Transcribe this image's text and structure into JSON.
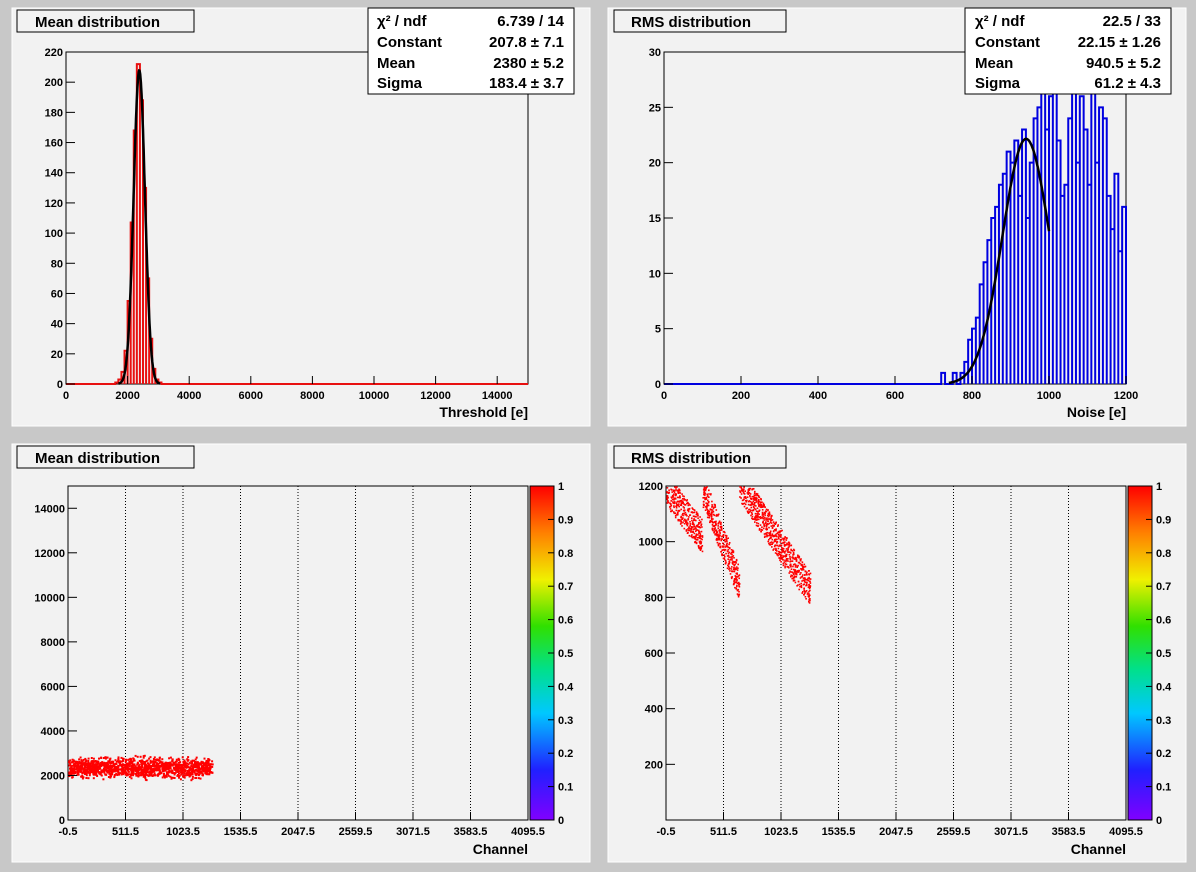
{
  "colors": {
    "background": "#f0f0f0",
    "hist_red": "#e81010",
    "hist_blue": "#0000e0",
    "fit": "#000000",
    "scatter": "#ff0000"
  },
  "chart_data": [
    {
      "type": "histogram",
      "title": "Mean distribution",
      "xlabel": "Threshold [e]",
      "ylabel": "",
      "xlim": [
        0,
        15000
      ],
      "ylim": [
        0,
        220
      ],
      "xticks": [
        "0",
        "2000",
        "4000",
        "6000",
        "8000",
        "10000",
        "12000",
        "14000"
      ],
      "yticks": [
        "0",
        "20",
        "40",
        "60",
        "80",
        "100",
        "120",
        "140",
        "160",
        "180",
        "200",
        "220"
      ],
      "line_color": "red",
      "bins": {
        "x": [
          1650,
          1750,
          1850,
          1950,
          2050,
          2150,
          2250,
          2350,
          2450,
          2550,
          2650,
          2750,
          2850,
          2950,
          3050
        ],
        "counts": [
          1,
          3,
          8,
          22,
          55,
          107,
          168,
          212,
          188,
          130,
          70,
          30,
          10,
          3,
          1
        ]
      },
      "fit": {
        "type": "gaus",
        "constant": 207.8,
        "mean": 2380,
        "sigma": 183.4,
        "range": [
          1700,
          3050
        ]
      },
      "stats": [
        {
          "label": "χ² / ndf",
          "value": "6.739 / 14"
        },
        {
          "label": "Constant",
          "value": "207.8 ± 7.1"
        },
        {
          "label": "Mean",
          "value": "2380 ± 5.2"
        },
        {
          "label": "Sigma",
          "value": "183.4 ± 3.7"
        }
      ],
      "grid": false
    },
    {
      "type": "histogram",
      "title": "RMS distribution",
      "xlabel": "Noise [e]",
      "ylabel": "",
      "xlim": [
        0,
        1200
      ],
      "ylim": [
        0,
        30
      ],
      "xticks": [
        "0",
        "200",
        "400",
        "600",
        "800",
        "1000",
        "1200"
      ],
      "yticks": [
        "0",
        "5",
        "10",
        "15",
        "20",
        "25",
        "30"
      ],
      "line_color": "blue",
      "bins": {
        "x": [
          725,
          735,
          745,
          755,
          765,
          775,
          785,
          795,
          805,
          815,
          825,
          835,
          845,
          855,
          865,
          875,
          885,
          895,
          905,
          915,
          925,
          935,
          945,
          955,
          965,
          975,
          985,
          995,
          1005,
          1015,
          1025,
          1035,
          1045,
          1055,
          1065,
          1075,
          1085,
          1095,
          1105,
          1115,
          1125,
          1135,
          1145,
          1155,
          1165,
          1175,
          1185,
          1195
        ],
        "counts": [
          1,
          0,
          0,
          1,
          0,
          1,
          2,
          4,
          5,
          6,
          9,
          11,
          13,
          15,
          16,
          18,
          19,
          21,
          20,
          22,
          17,
          23,
          15,
          20,
          24,
          25,
          28,
          23,
          26,
          28,
          22,
          17,
          18,
          24,
          27,
          20,
          26,
          23,
          18,
          27,
          20,
          25,
          24,
          17,
          14,
          19,
          12,
          16
        ]
      },
      "fit": {
        "type": "gaus",
        "constant": 22.15,
        "mean": 940.5,
        "sigma": 61.2,
        "range": [
          740,
          1000
        ]
      },
      "stats": [
        {
          "label": "χ² / ndf",
          "value": "22.5 / 33"
        },
        {
          "label": "Constant",
          "value": "22.15 ± 1.26"
        },
        {
          "label": "Mean",
          "value": "940.5 ± 5.2"
        },
        {
          "label": "Sigma",
          "value": "61.2 ± 4.3"
        }
      ],
      "grid": false
    },
    {
      "type": "heatmap",
      "title": "Mean distribution",
      "xlabel": "Channel",
      "ylabel": "",
      "xlim": [
        -0.5,
        4095.5
      ],
      "ylim": [
        0,
        15000
      ],
      "xticks": [
        "-0.5",
        "511.5",
        "1023.5",
        "1535.5",
        "2047.5",
        "2559.5",
        "3071.5",
        "3583.5",
        "4095.5"
      ],
      "yticks": [
        "0",
        "2000",
        "4000",
        "6000",
        "8000",
        "10000",
        "12000",
        "14000"
      ],
      "grid": "vertical dotted",
      "band": {
        "x": [
          -0.5,
          1280
        ],
        "y_center": 2380,
        "y_spread": 350
      },
      "colorbar": {
        "range": [
          0,
          1
        ],
        "ticks": [
          "0",
          "0.1",
          "0.2",
          "0.3",
          "0.4",
          "0.5",
          "0.6",
          "0.7",
          "0.8",
          "0.9",
          "1"
        ]
      }
    },
    {
      "type": "heatmap",
      "title": "RMS distribution",
      "xlabel": "Channel",
      "ylabel": "",
      "xlim": [
        -0.5,
        4095.5
      ],
      "ylim": [
        0,
        1200
      ],
      "xticks": [
        "-0.5",
        "511.5",
        "1023.5",
        "1535.5",
        "2047.5",
        "2559.5",
        "3071.5",
        "3583.5",
        "4095.5"
      ],
      "yticks": [
        "200",
        "400",
        "600",
        "800",
        "1000",
        "1200"
      ],
      "grid": "vertical dotted",
      "segments": [
        {
          "x0": 0,
          "x1": 320,
          "y0": 1190,
          "y1": 1020
        },
        {
          "x0": 320,
          "x1": 650,
          "y0": 1190,
          "y1": 850
        },
        {
          "x0": 650,
          "x1": 1280,
          "y0": 1210,
          "y1": 830
        }
      ],
      "colorbar": {
        "range": [
          0,
          1
        ],
        "ticks": [
          "0",
          "0.1",
          "0.2",
          "0.3",
          "0.4",
          "0.5",
          "0.6",
          "0.7",
          "0.8",
          "0.9",
          "1"
        ]
      }
    }
  ]
}
